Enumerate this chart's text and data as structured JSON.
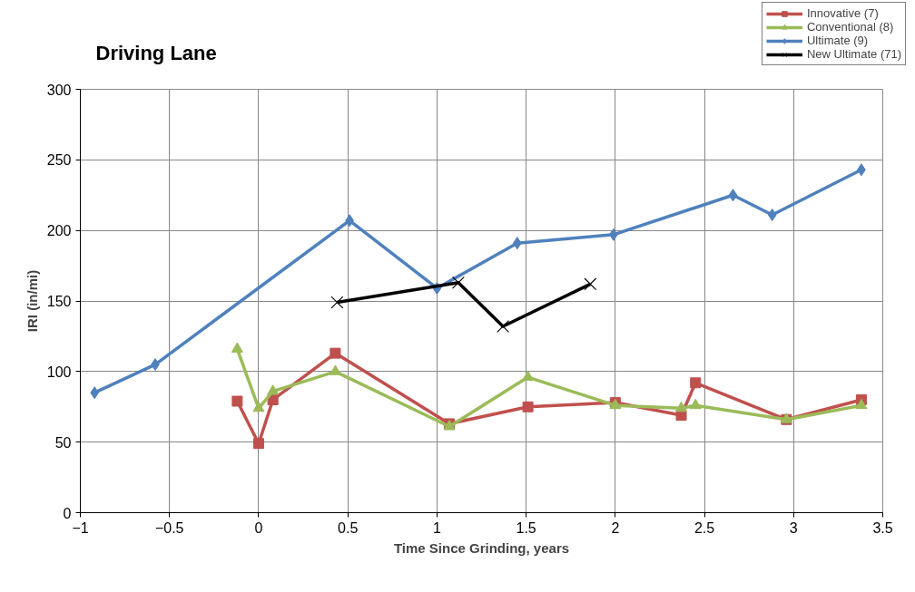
{
  "chart_data": {
    "type": "line",
    "title": "Driving Lane",
    "xlabel": "Time Since Grinding, years",
    "ylabel": "IRI (in/mi)",
    "xlim": [
      -1,
      3.5
    ],
    "xticks": [
      -1,
      -0.5,
      0,
      0.5,
      1,
      1.5,
      2,
      2.5,
      3,
      3.5
    ],
    "ylim": [
      0,
      300
    ],
    "yticks": [
      0,
      50,
      100,
      150,
      200,
      250,
      300
    ],
    "grid": true,
    "legend": "top right",
    "series": [
      {
        "name": "Innovative (7)",
        "color": "#c0504d",
        "marker": "square",
        "x": [
          -0.12,
          0.0,
          0.08,
          0.43,
          1.07,
          1.51,
          2.0,
          2.37,
          2.45,
          2.96,
          3.38
        ],
        "values": [
          79,
          49,
          80,
          113,
          63,
          75,
          78,
          69,
          92,
          66,
          80
        ]
      },
      {
        "name": "Conventional (8)",
        "color": "#9bbb59",
        "marker": "triangle",
        "x": [
          -0.12,
          0.0,
          0.08,
          0.43,
          1.07,
          1.51,
          2.0,
          2.37,
          2.45,
          2.96,
          3.38
        ],
        "values": [
          116,
          74,
          86,
          100,
          61,
          96,
          76,
          74,
          76,
          66,
          76
        ]
      },
      {
        "name": "Ultimate (9)",
        "color": "#4f81bd",
        "marker": "diamond",
        "x": [
          -0.92,
          -0.58,
          0.51,
          1.0,
          1.45,
          1.99,
          2.66,
          2.88,
          3.38
        ],
        "values": [
          85,
          105,
          207,
          159,
          191,
          197,
          225,
          211,
          243
        ]
      },
      {
        "name": "New Ultimate (71)",
        "color": "#000000",
        "marker": "cross",
        "x": [
          0.44,
          1.12,
          1.37,
          1.86
        ],
        "values": [
          149,
          163,
          132,
          162
        ]
      }
    ]
  }
}
